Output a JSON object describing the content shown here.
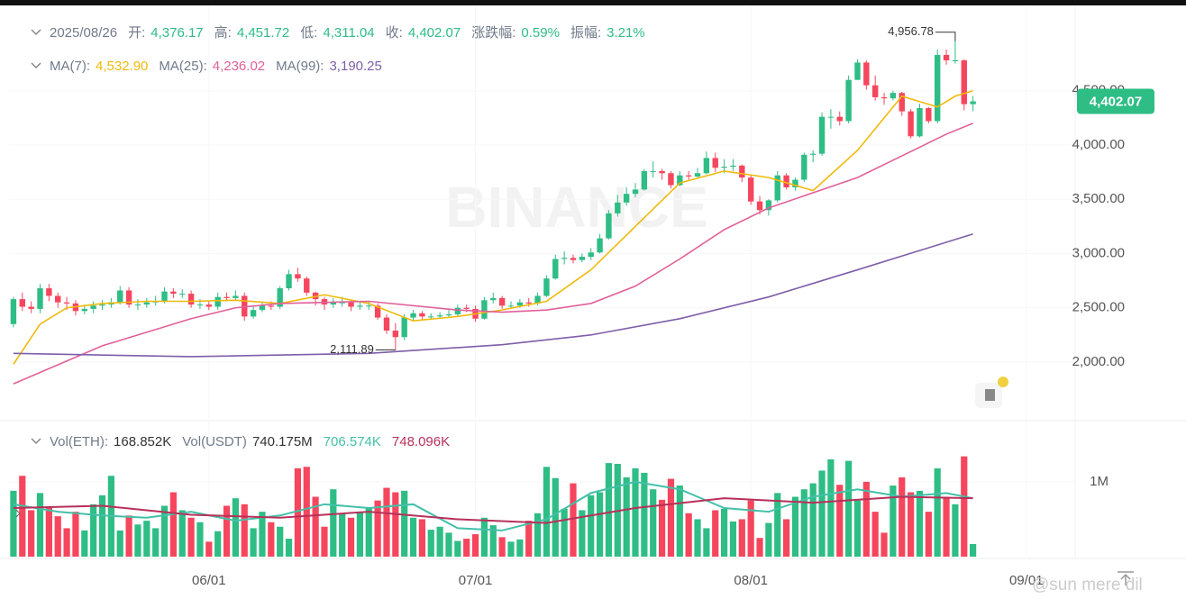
{
  "chart_data": [
    {
      "type": "candlestick",
      "header": [
        {
          "text": "2025/08/26",
          "color": "#707a8a"
        },
        {
          "text": "开:",
          "color": "#707a8a"
        },
        {
          "text": "4,376.17",
          "color": "#2ebd85"
        },
        {
          "text": "高:",
          "color": "#707a8a"
        },
        {
          "text": "4,451.72",
          "color": "#2ebd85"
        },
        {
          "text": "低:",
          "color": "#707a8a"
        },
        {
          "text": "4,311.04",
          "color": "#2ebd85"
        },
        {
          "text": "收:",
          "color": "#707a8a"
        },
        {
          "text": "4,402.07",
          "color": "#2ebd85"
        },
        {
          "text": "涨跌幅:",
          "color": "#707a8a"
        },
        {
          "text": "0.59%",
          "color": "#2ebd85"
        },
        {
          "text": "振幅:",
          "color": "#707a8a"
        },
        {
          "text": "3.21%",
          "color": "#2ebd85"
        }
      ],
      "watermark": "BINANCE",
      "up_color": "#2ebd85",
      "down_color": "#f6465d",
      "xlim": [
        -0.5,
        119.5
      ],
      "ylim": [
        1477,
        5253
      ],
      "yticks": [
        {
          "value": 2000,
          "label": "2,000.00"
        },
        {
          "value": 2500,
          "label": "2,500.00"
        },
        {
          "value": 3000,
          "label": "3,000.00"
        },
        {
          "value": 3500,
          "label": "3,500.00"
        },
        {
          "value": 4000,
          "label": "4,000.00"
        },
        {
          "value": 4500,
          "label": "4,500.00"
        }
      ],
      "grid": true,
      "last_price": {
        "value": 4402.07,
        "label": "4,402.07",
        "color": "#2ebd85"
      },
      "annotations": [
        {
          "text": "4,956.78",
          "x": 106,
          "y": 4956.78
        },
        {
          "text": "2,111.89",
          "x": 43,
          "y": 2111.89
        }
      ],
      "open": [
        2350,
        2580,
        2510,
        2490,
        2680,
        2610,
        2550,
        2540,
        2470,
        2490,
        2520,
        2530,
        2550,
        2660,
        2530,
        2530,
        2550,
        2560,
        2650,
        2630,
        2630,
        2530,
        2530,
        2510,
        2600,
        2590,
        2610,
        2420,
        2480,
        2520,
        2510,
        2680,
        2810,
        2770,
        2640,
        2580,
        2530,
        2550,
        2550,
        2510,
        2520,
        2520,
        2410,
        2290,
        2230,
        2410,
        2450,
        2420,
        2420,
        2430,
        2440,
        2500,
        2490,
        2400,
        2570,
        2590,
        2520,
        2520,
        2550,
        2540,
        2610,
        2770,
        2950,
        2960,
        2940,
        2970,
        3010,
        3140,
        3370,
        3470,
        3550,
        3590,
        3760,
        3760,
        3740,
        3630,
        3720,
        3710,
        3740,
        3880,
        3790,
        3800,
        3810,
        3700,
        3480,
        3400,
        3490,
        3720,
        3610,
        3680,
        3910,
        3920,
        4260,
        4260,
        4220,
        4600,
        4760,
        4550,
        4440,
        4430,
        4480,
        4310,
        4080,
        4340,
        4220,
        4830,
        4780,
        4780,
        4376.17
      ],
      "high": [
        2600,
        2640,
        2560,
        2720,
        2720,
        2640,
        2600,
        2570,
        2530,
        2560,
        2570,
        2590,
        2700,
        2690,
        2580,
        2590,
        2610,
        2690,
        2680,
        2670,
        2660,
        2580,
        2560,
        2640,
        2640,
        2660,
        2640,
        2520,
        2560,
        2560,
        2700,
        2850,
        2870,
        2790,
        2650,
        2600,
        2590,
        2600,
        2570,
        2560,
        2560,
        2540,
        2440,
        2360,
        2440,
        2480,
        2470,
        2450,
        2460,
        2480,
        2530,
        2530,
        2520,
        2600,
        2640,
        2610,
        2560,
        2580,
        2590,
        2640,
        2800,
        2990,
        3020,
        2990,
        3000,
        3050,
        3180,
        3400,
        3540,
        3610,
        3650,
        3780,
        3850,
        3780,
        3760,
        3760,
        3760,
        3790,
        3940,
        3930,
        3870,
        3870,
        3820,
        3720,
        3530,
        3500,
        3760,
        3740,
        3700,
        3930,
        3950,
        4300,
        4330,
        4310,
        4640,
        4790,
        4780,
        4640,
        4480,
        4500,
        4490,
        4330,
        4380,
        4350,
        4880,
        4880,
        4956.78,
        4790,
        4451.72
      ],
      "low": [
        2320,
        2470,
        2450,
        2450,
        2560,
        2500,
        2480,
        2430,
        2440,
        2450,
        2480,
        2500,
        2530,
        2500,
        2480,
        2500,
        2520,
        2540,
        2590,
        2590,
        2500,
        2490,
        2480,
        2480,
        2560,
        2570,
        2380,
        2400,
        2460,
        2480,
        2490,
        2660,
        2740,
        2610,
        2520,
        2480,
        2500,
        2510,
        2470,
        2480,
        2480,
        2390,
        2260,
        2111.89,
        2200,
        2380,
        2390,
        2390,
        2400,
        2410,
        2420,
        2460,
        2370,
        2390,
        2540,
        2490,
        2490,
        2500,
        2510,
        2520,
        2600,
        2760,
        2900,
        2910,
        2920,
        2940,
        3000,
        3130,
        3340,
        3440,
        3520,
        3580,
        3700,
        3680,
        3600,
        3620,
        3680,
        3700,
        3730,
        3750,
        3740,
        3760,
        3660,
        3450,
        3360,
        3350,
        3470,
        3590,
        3580,
        3660,
        3840,
        3900,
        4150,
        4180,
        4200,
        4600,
        4510,
        4410,
        4370,
        4410,
        4270,
        4060,
        4070,
        4200,
        4200,
        4740,
        4750,
        4320,
        4311.04
      ],
      "close": [
        2580,
        2510,
        2490,
        2680,
        2610,
        2550,
        2540,
        2470,
        2490,
        2520,
        2530,
        2550,
        2660,
        2530,
        2530,
        2550,
        2560,
        2650,
        2630,
        2630,
        2530,
        2530,
        2510,
        2600,
        2590,
        2610,
        2420,
        2480,
        2520,
        2510,
        2680,
        2810,
        2770,
        2640,
        2580,
        2530,
        2550,
        2550,
        2510,
        2520,
        2520,
        2410,
        2290,
        2230,
        2410,
        2450,
        2420,
        2420,
        2430,
        2440,
        2500,
        2490,
        2400,
        2570,
        2590,
        2520,
        2520,
        2550,
        2540,
        2610,
        2770,
        2950,
        2960,
        2940,
        2970,
        3010,
        3140,
        3370,
        3470,
        3550,
        3590,
        3760,
        3760,
        3740,
        3630,
        3720,
        3710,
        3740,
        3880,
        3790,
        3800,
        3810,
        3700,
        3480,
        3400,
        3490,
        3720,
        3610,
        3680,
        3910,
        3920,
        4260,
        4260,
        4220,
        4600,
        4760,
        4550,
        4440,
        4430,
        4480,
        4310,
        4080,
        4340,
        4220,
        4830,
        4780,
        4780,
        4376.17,
        4402.07
      ],
      "series": [
        {
          "name": "MA(7):",
          "value_label": "4,532.90",
          "color": "#f0b90b",
          "x": [
            0,
            3,
            6,
            10,
            15,
            20,
            25,
            30,
            35,
            40,
            45,
            50,
            55,
            60,
            65,
            70,
            75,
            80,
            85,
            90,
            95,
            100,
            104,
            106,
            108
          ],
          "values": [
            1980,
            2350,
            2500,
            2540,
            2560,
            2560,
            2570,
            2540,
            2620,
            2540,
            2380,
            2420,
            2480,
            2560,
            2850,
            3250,
            3650,
            3760,
            3700,
            3580,
            3950,
            4450,
            4350,
            4450,
            4500
          ]
        },
        {
          "name": "MA(25):",
          "value_label": "4,236.02",
          "color": "#e0609a",
          "x": [
            0,
            10,
            20,
            25,
            30,
            40,
            50,
            55,
            60,
            65,
            70,
            75,
            80,
            85,
            90,
            95,
            100,
            105,
            108
          ],
          "values": [
            1800,
            2150,
            2400,
            2500,
            2540,
            2560,
            2480,
            2460,
            2480,
            2540,
            2700,
            2950,
            3220,
            3420,
            3560,
            3700,
            3900,
            4100,
            4200
          ]
        },
        {
          "name": "MA(99):",
          "value_label": "3,190.25",
          "color": "#7d5ea8",
          "x": [
            0,
            20,
            40,
            55,
            65,
            75,
            85,
            95,
            108
          ],
          "values": [
            2080,
            2050,
            2080,
            2160,
            2250,
            2400,
            2600,
            2850,
            3180
          ]
        }
      ]
    },
    {
      "type": "bar",
      "name": "Vol(ETH):",
      "value_label": "168.852K",
      "usdt_name": "Vol(USDT)",
      "usdt_label": "740.175M",
      "xlim": [
        -0.5,
        119.5
      ],
      "ylim": [
        0,
        1420000
      ],
      "yticks": [
        {
          "value": 1000000,
          "label": "1M"
        }
      ],
      "xticks": [
        {
          "value": 22,
          "label": "06/01"
        },
        {
          "value": 52,
          "label": "07/01"
        },
        {
          "value": 83,
          "label": "08/01"
        },
        {
          "value": 114,
          "label": "09/01"
        }
      ],
      "values": [
        880000,
        1080000,
        620000,
        850000,
        650000,
        540000,
        380000,
        600000,
        350000,
        700000,
        820000,
        1080000,
        350000,
        550000,
        430000,
        480000,
        380000,
        680000,
        860000,
        620000,
        520000,
        460000,
        200000,
        340000,
        680000,
        780000,
        700000,
        380000,
        600000,
        460000,
        400000,
        240000,
        1180000,
        1200000,
        800000,
        400000,
        900000,
        580000,
        520000,
        600000,
        650000,
        750000,
        920000,
        860000,
        880000,
        520000,
        500000,
        360000,
        400000,
        320000,
        210000,
        240000,
        300000,
        520000,
        420000,
        260000,
        200000,
        230000,
        480000,
        580000,
        1200000,
        1050000,
        640000,
        980000,
        620000,
        820000,
        860000,
        1250000,
        1240000,
        1060000,
        1180000,
        1120000,
        900000,
        760000,
        1040000,
        950000,
        580000,
        500000,
        380000,
        620000,
        640000,
        470000,
        500000,
        750000,
        250000,
        450000,
        850000,
        500000,
        800000,
        900000,
        980000,
        1150000,
        1300000,
        960000,
        1280000,
        750000,
        1000000,
        600000,
        320000,
        950000,
        1060000,
        860000,
        880000,
        600000,
        1180000,
        800000,
        700000,
        1340000,
        169000
      ],
      "series": [
        {
          "value_label": "706.574K",
          "color": "#43c0a8",
          "x": [
            0,
            5,
            10,
            15,
            20,
            25,
            30,
            35,
            40,
            45,
            50,
            55,
            60,
            65,
            70,
            75,
            80,
            85,
            90,
            95,
            100,
            105,
            108
          ],
          "values": [
            700000,
            600000,
            550000,
            520000,
            600000,
            480000,
            550000,
            700000,
            650000,
            700000,
            380000,
            350000,
            500000,
            850000,
            1000000,
            900000,
            650000,
            600000,
            800000,
            900000,
            800000,
            850000,
            780000
          ]
        },
        {
          "value_label": "748.096K",
          "color": "#b8305a",
          "x": [
            0,
            10,
            20,
            30,
            40,
            50,
            60,
            70,
            80,
            90,
            100,
            108
          ],
          "values": [
            650000,
            680000,
            560000,
            520000,
            600000,
            500000,
            450000,
            650000,
            780000,
            720000,
            800000,
            780000
          ]
        }
      ]
    },
    {
      "type": "text",
      "text": "@sun mere dil"
    }
  ]
}
